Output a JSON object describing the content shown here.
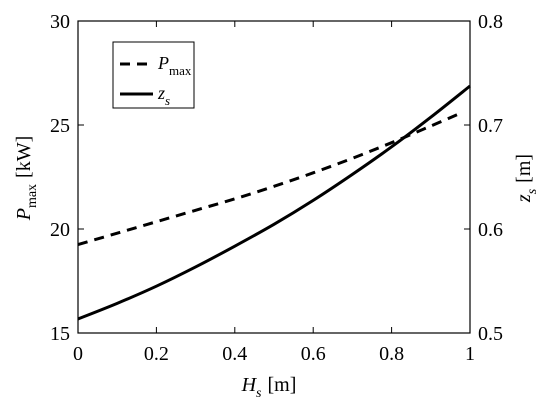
{
  "chart_data": {
    "type": "line",
    "xlabel": {
      "main": "H",
      "sub": "s",
      "unit": "[m]"
    },
    "ylabel_left": {
      "main": "P",
      "sub": "max",
      "unit": "[kW]"
    },
    "ylabel_right": {
      "main": "z",
      "sub": "s",
      "unit": "[m]"
    },
    "xlim": [
      0,
      1
    ],
    "ylim_left": [
      15,
      30
    ],
    "ylim_right": [
      0.5,
      0.8
    ],
    "x_ticks": [
      0,
      0.2,
      0.4,
      0.6,
      0.8,
      1
    ],
    "x_tick_labels": [
      "0",
      "0.2",
      "0.4",
      "0.6",
      "0.8",
      "1"
    ],
    "y_left_ticks": [
      15,
      20,
      25,
      30
    ],
    "y_left_tick_labels": [
      "15",
      "20",
      "25",
      "30"
    ],
    "y_right_ticks": [
      0.5,
      0.6,
      0.7,
      0.8
    ],
    "y_right_tick_labels": [
      "0.5",
      "0.6",
      "0.7",
      "0.8"
    ],
    "grid": false,
    "legend_position": "top-left",
    "series": [
      {
        "name": {
          "main": "P",
          "sub": "max"
        },
        "axis": "left",
        "style": "dashed",
        "color": "#000000",
        "x": [
          0,
          0.1,
          0.2,
          0.3,
          0.4,
          0.5,
          0.6,
          0.7,
          0.8,
          0.9,
          0.98
        ],
        "y": [
          19.25,
          19.8,
          20.35,
          20.9,
          21.45,
          22.05,
          22.7,
          23.4,
          24.15,
          24.95,
          25.6
        ]
      },
      {
        "name": {
          "main": "z",
          "sub": "s"
        },
        "axis": "right",
        "style": "solid",
        "color": "#000000",
        "x": [
          0,
          0.1,
          0.2,
          0.3,
          0.4,
          0.5,
          0.6,
          0.7,
          0.8,
          0.9,
          1
        ],
        "y": [
          0.5135,
          0.5285,
          0.545,
          0.5635,
          0.5835,
          0.6045,
          0.6275,
          0.6525,
          0.679,
          0.7075,
          0.7375
        ]
      }
    ]
  }
}
